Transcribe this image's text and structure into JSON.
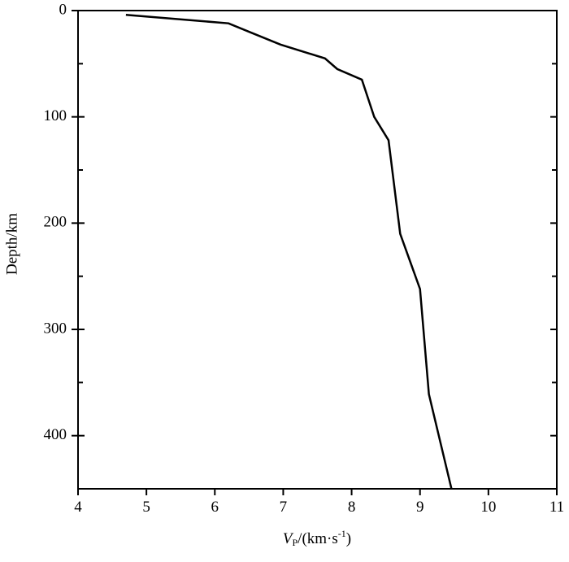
{
  "chart_data": {
    "type": "line",
    "x_label_parts": {
      "main": "V",
      "sub": "P",
      "rest": "/(km·s",
      "sup": "-1",
      "end": ")"
    },
    "y_label": "Depth/km",
    "x": [
      4.7,
      6.2,
      6.54,
      6.96,
      7.61,
      7.79,
      8.15,
      8.33,
      8.54,
      8.71,
      9.0,
      9.13,
      9.46
    ],
    "series": [
      {
        "color": "#000000",
        "values": [
          4,
          12,
          21,
          32,
          45,
          55,
          65,
          100,
          122,
          210,
          262,
          361,
          450
        ]
      }
    ],
    "xlim": [
      4,
      11
    ],
    "xticks": [
      4,
      5,
      6,
      7,
      8,
      9,
      10,
      11
    ],
    "ylim": [
      450,
      0
    ],
    "yticks": [
      0,
      100,
      200,
      300,
      400
    ],
    "y_minor_ticks": [
      50,
      150,
      250,
      350
    ]
  }
}
